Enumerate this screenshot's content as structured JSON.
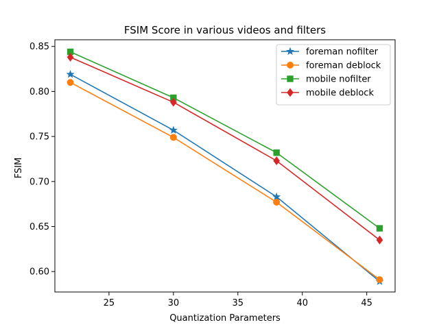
{
  "chart_data": {
    "type": "line",
    "title": "FSIM Score in various videos and filters",
    "xlabel": "Quantization Parameters",
    "ylabel": "FSIM",
    "xlim": [
      20.8,
      47.2
    ],
    "ylim": [
      0.5773,
      0.8574
    ],
    "xticks": [
      25,
      30,
      35,
      40,
      45
    ],
    "yticks": [
      0.6,
      0.65,
      0.7,
      0.75,
      0.8,
      0.85
    ],
    "xtick_labels": [
      "25",
      "30",
      "35",
      "40",
      "45"
    ],
    "ytick_labels": [
      "0.60",
      "0.65",
      "0.70",
      "0.75",
      "0.80",
      "0.85"
    ],
    "x": [
      22,
      30,
      38,
      46
    ],
    "grid": false,
    "legend_position": "upper-right",
    "series": [
      {
        "name": "foreman nofilter",
        "values": [
          0.819,
          0.757,
          0.683,
          0.589
        ],
        "color": "#1f77b4",
        "marker": "star"
      },
      {
        "name": "foreman deblock",
        "values": [
          0.81,
          0.749,
          0.677,
          0.591
        ],
        "color": "#ff7f0e",
        "marker": "circle"
      },
      {
        "name": "mobile nofilter",
        "values": [
          0.844,
          0.793,
          0.732,
          0.648
        ],
        "color": "#2ca02c",
        "marker": "square"
      },
      {
        "name": "mobile deblock",
        "values": [
          0.838,
          0.788,
          0.723,
          0.635
        ],
        "color": "#d62728",
        "marker": "diamond"
      }
    ]
  }
}
